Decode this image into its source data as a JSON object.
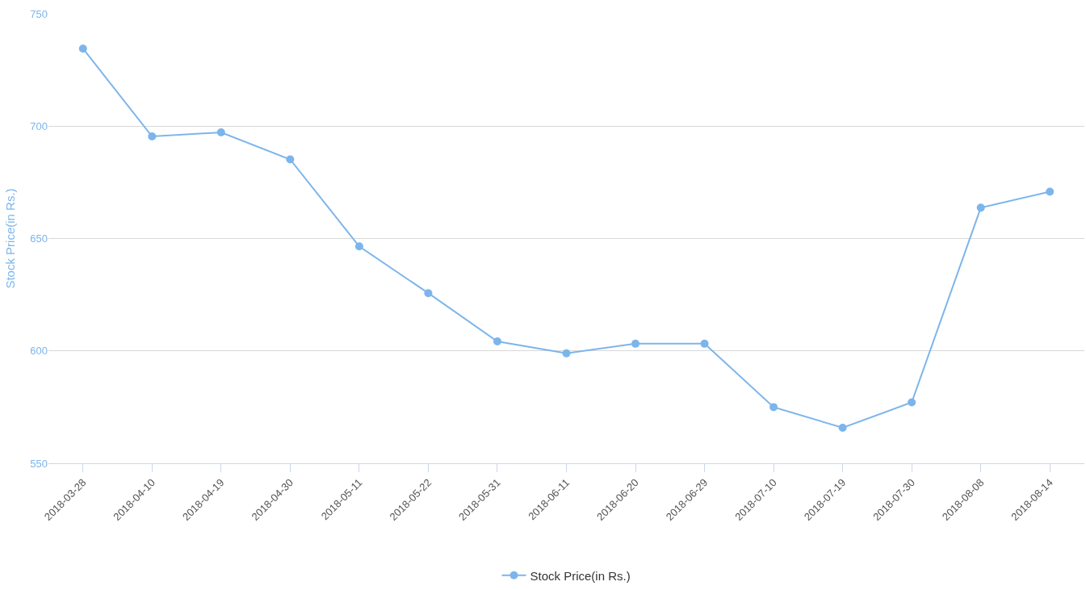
{
  "chart_data": {
    "type": "line",
    "ylabel": "Stock Price(in Rs.)",
    "categories": [
      "2018-03-28",
      "2018-04-10",
      "2018-04-19",
      "2018-04-30",
      "2018-05-11",
      "2018-05-22",
      "2018-05-31",
      "2018-06-11",
      "2018-06-20",
      "2018-06-29",
      "2018-07-10",
      "2018-07-19",
      "2018-07-30",
      "2018-08-08",
      "2018-08-14"
    ],
    "series": [
      {
        "name": "Stock Price(in Rs.)",
        "color": "#7cb5ec",
        "values": [
          734.5,
          695.4,
          697.2,
          685.2,
          646.5,
          625.7,
          604.2,
          598.9,
          603.2,
          603.2,
          575.0,
          565.8,
          577.1,
          663.7,
          670.8
        ]
      }
    ],
    "ylim": [
      550,
      750
    ],
    "yticks": [
      550,
      600,
      650,
      700,
      750
    ],
    "grid": "y",
    "legend": "bottom",
    "marker": "circle",
    "line_style": "solid"
  }
}
